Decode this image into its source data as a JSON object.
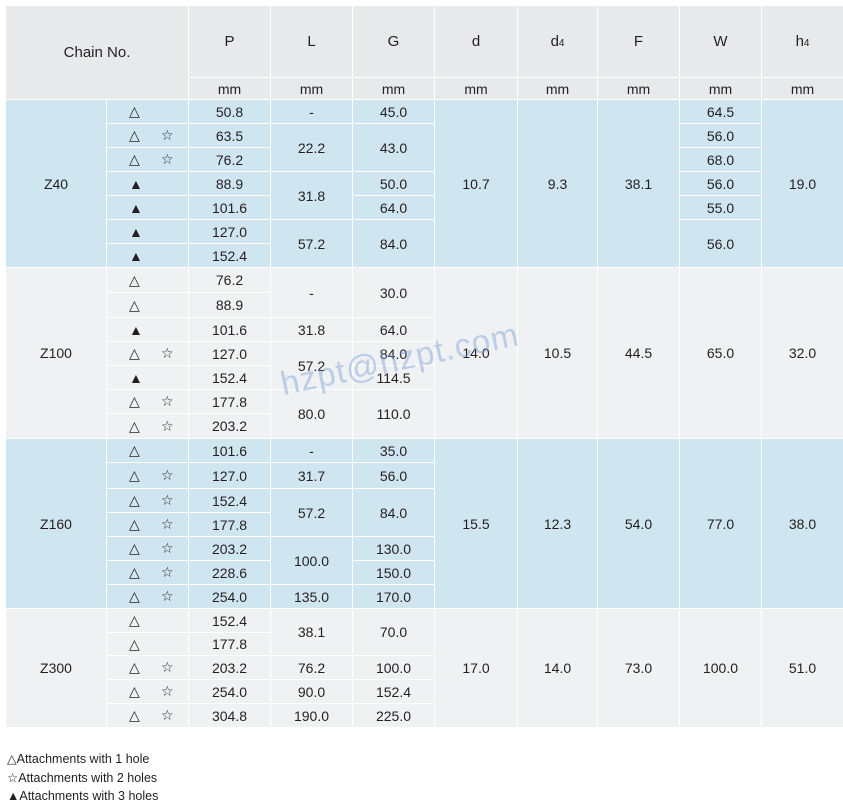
{
  "header": {
    "chain_no_label": "Chain No.",
    "columns": [
      {
        "label": "P",
        "unit": "mm"
      },
      {
        "label": "L",
        "unit": "mm"
      },
      {
        "label": "G",
        "unit": "mm"
      },
      {
        "label": "d",
        "unit": "mm"
      },
      {
        "label": "d",
        "sub": "4",
        "unit": "mm"
      },
      {
        "label": "F",
        "unit": "mm"
      },
      {
        "label": "W",
        "unit": "mm"
      },
      {
        "label": "h",
        "sub": "4",
        "unit": "mm"
      }
    ]
  },
  "groups": [
    {
      "name": "Z40",
      "d": "10.7",
      "d4": "9.3",
      "F": "38.1",
      "h4": "19.0",
      "rows": [
        {
          "sym1": "△",
          "sym2": "",
          "P": "50.8"
        },
        {
          "sym1": "△",
          "sym2": "☆",
          "P": "63.5"
        },
        {
          "sym1": "△",
          "sym2": "☆",
          "P": "76.2"
        },
        {
          "sym1": "▲",
          "sym2": "",
          "P": "88.9"
        },
        {
          "sym1": "▲",
          "sym2": "",
          "P": "101.6"
        },
        {
          "sym1": "▲",
          "sym2": "",
          "P": "127.0"
        },
        {
          "sym1": "▲",
          "sym2": "",
          "P": "152.4"
        }
      ],
      "L": [
        "-",
        "22.2",
        "31.8",
        "57.2"
      ],
      "G": [
        "45.0",
        "43.0",
        "50.0",
        "64.0",
        "84.0"
      ],
      "W": [
        "64.5",
        "56.0",
        "68.0",
        "56.0",
        "55.0",
        "56.0"
      ]
    },
    {
      "name": "Z100",
      "d": "14.0",
      "d4": "10.5",
      "F": "44.5",
      "W": "65.0",
      "h4": "32.0",
      "rows": [
        {
          "sym1": "△",
          "sym2": "",
          "P": "76.2"
        },
        {
          "sym1": "△",
          "sym2": "",
          "P": "88.9"
        },
        {
          "sym1": "▲",
          "sym2": "",
          "P": "101.6"
        },
        {
          "sym1": "△",
          "sym2": "☆",
          "P": "127.0"
        },
        {
          "sym1": "▲",
          "sym2": "",
          "P": "152.4"
        },
        {
          "sym1": "△",
          "sym2": "☆",
          "P": "177.8"
        },
        {
          "sym1": "△",
          "sym2": "☆",
          "P": "203.2"
        }
      ],
      "L": [
        "-",
        "31.8",
        "57.2",
        "80.0"
      ],
      "G": [
        "30.0",
        "64.0",
        "84.0",
        "114.5",
        "110.0"
      ]
    },
    {
      "name": "Z160",
      "d": "15.5",
      "d4": "12.3",
      "F": "54.0",
      "W": "77.0",
      "h4": "38.0",
      "rows": [
        {
          "sym1": "△",
          "sym2": "",
          "P": "101.6"
        },
        {
          "sym1": "△",
          "sym2": "☆",
          "P": "127.0"
        },
        {
          "sym1": "△",
          "sym2": "☆",
          "P": "152.4"
        },
        {
          "sym1": "△",
          "sym2": "☆",
          "P": "177.8"
        },
        {
          "sym1": "△",
          "sym2": "☆",
          "P": "203.2"
        },
        {
          "sym1": "△",
          "sym2": "☆",
          "P": "228.6"
        },
        {
          "sym1": "△",
          "sym2": "☆",
          "P": "254.0"
        }
      ],
      "L": [
        "-",
        "31.7",
        "57.2",
        "100.0",
        "135.0"
      ],
      "G": [
        "35.0",
        "56.0",
        "84.0",
        "130.0",
        "150.0",
        "170.0"
      ]
    },
    {
      "name": "Z300",
      "d": "17.0",
      "d4": "14.0",
      "F": "73.0",
      "W": "100.0",
      "h4": "51.0",
      "rows": [
        {
          "sym1": "△",
          "sym2": "",
          "P": "152.4"
        },
        {
          "sym1": "△",
          "sym2": "",
          "P": "177.8"
        },
        {
          "sym1": "△",
          "sym2": "☆",
          "P": "203.2"
        },
        {
          "sym1": "△",
          "sym2": "☆",
          "P": "254.0"
        },
        {
          "sym1": "△",
          "sym2": "☆",
          "P": "304.8"
        }
      ],
      "L": [
        "38.1",
        "76.2",
        "90.0",
        "190.0"
      ],
      "G": [
        "70.0",
        "100.0",
        "152.4",
        "225.0"
      ]
    }
  ],
  "legend": [
    "△Attachments with 1 hole",
    "☆Attachments with 2 holes",
    "▲Attachments with 3 holes"
  ],
  "watermark": "hzpt@hzpt.com",
  "colors": {
    "blue_band": "#cfe6f1",
    "grey_band": "#f0f1f2",
    "header": "#e8e9eb"
  }
}
